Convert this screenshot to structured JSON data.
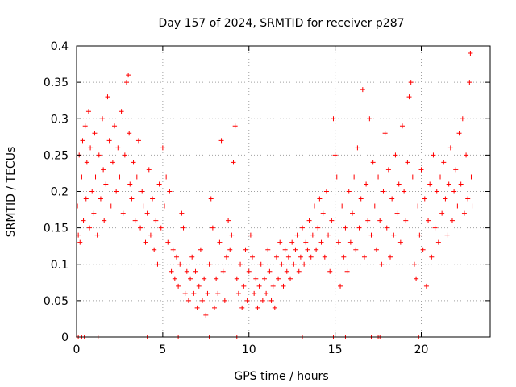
{
  "chart_data": {
    "type": "scatter",
    "title": "Day 157 of 2024, SRMTID for receiver p287",
    "xlabel": "GPS time / hours",
    "ylabel": "SRMTID / TECUs",
    "xlim": [
      0,
      24
    ],
    "ylim": [
      0,
      0.4
    ],
    "xticks": [
      0,
      5,
      10,
      15,
      20
    ],
    "xtick_labels": [
      "0",
      "5",
      "10",
      "15",
      "20"
    ],
    "yticks": [
      0,
      0.05,
      0.1,
      0.15,
      0.2,
      0.25,
      0.3,
      0.35,
      0.4
    ],
    "ytick_labels": [
      "0",
      "0.05",
      "0.1",
      "0.15",
      "0.2",
      "0.25",
      "0.3",
      "0.35",
      "0.4"
    ],
    "grid": true,
    "marker": "+",
    "series": [
      {
        "name": "SRMTID",
        "color": "#ff0000",
        "points": [
          [
            0.05,
            0.18
          ],
          [
            0.1,
            0.14
          ],
          [
            0.15,
            0.25
          ],
          [
            0.2,
            0.13
          ],
          [
            0.3,
            0.22
          ],
          [
            0.35,
            0.27
          ],
          [
            0.4,
            0.16
          ],
          [
            0.5,
            0.29
          ],
          [
            0.55,
            0.19
          ],
          [
            0.6,
            0.24
          ],
          [
            0.7,
            0.31
          ],
          [
            0.75,
            0.15
          ],
          [
            0.8,
            0.26
          ],
          [
            0.9,
            0.2
          ],
          [
            1.0,
            0.17
          ],
          [
            1.05,
            0.28
          ],
          [
            1.1,
            0.22
          ],
          [
            1.2,
            0.14
          ],
          [
            1.3,
            0.25
          ],
          [
            1.4,
            0.19
          ],
          [
            1.5,
            0.3
          ],
          [
            1.55,
            0.23
          ],
          [
            1.6,
            0.16
          ],
          [
            1.7,
            0.21
          ],
          [
            1.8,
            0.33
          ],
          [
            1.9,
            0.27
          ],
          [
            2.0,
            0.18
          ],
          [
            2.1,
            0.24
          ],
          [
            2.2,
            0.29
          ],
          [
            2.3,
            0.2
          ],
          [
            2.4,
            0.26
          ],
          [
            2.5,
            0.22
          ],
          [
            2.6,
            0.31
          ],
          [
            2.7,
            0.17
          ],
          [
            2.8,
            0.25
          ],
          [
            2.9,
            0.35
          ],
          [
            3.0,
            0.36
          ],
          [
            3.05,
            0.28
          ],
          [
            3.1,
            0.21
          ],
          [
            3.2,
            0.19
          ],
          [
            3.3,
            0.24
          ],
          [
            3.4,
            0.16
          ],
          [
            3.5,
            0.22
          ],
          [
            3.6,
            0.27
          ],
          [
            3.7,
            0.15
          ],
          [
            3.8,
            0.2
          ],
          [
            3.9,
            0.18
          ],
          [
            4.0,
            0.13
          ],
          [
            4.1,
            0.17
          ],
          [
            4.2,
            0.23
          ],
          [
            4.3,
            0.14
          ],
          [
            4.4,
            0.19
          ],
          [
            4.5,
            0.12
          ],
          [
            4.6,
            0.16
          ],
          [
            4.7,
            0.1
          ],
          [
            4.8,
            0.21
          ],
          [
            4.9,
            0.15
          ],
          [
            5.0,
            0.26
          ],
          [
            5.1,
            0.18
          ],
          [
            5.2,
            0.22
          ],
          [
            5.3,
            0.13
          ],
          [
            5.4,
            0.2
          ],
          [
            5.5,
            0.09
          ],
          [
            5.6,
            0.12
          ],
          [
            5.7,
            0.08
          ],
          [
            5.8,
            0.11
          ],
          [
            5.9,
            0.07
          ],
          [
            6.0,
            0.1
          ],
          [
            6.1,
            0.17
          ],
          [
            6.2,
            0.15
          ],
          [
            6.3,
            0.06
          ],
          [
            6.4,
            0.09
          ],
          [
            6.5,
            0.05
          ],
          [
            6.6,
            0.08
          ],
          [
            6.7,
            0.11
          ],
          [
            6.8,
            0.06
          ],
          [
            6.9,
            0.09
          ],
          [
            7.0,
            0.04
          ],
          [
            7.1,
            0.07
          ],
          [
            7.2,
            0.12
          ],
          [
            7.3,
            0.05
          ],
          [
            7.4,
            0.08
          ],
          [
            7.5,
            0.03
          ],
          [
            7.6,
            0.06
          ],
          [
            7.7,
            0.1
          ],
          [
            7.8,
            0.19
          ],
          [
            7.9,
            0.15
          ],
          [
            8.0,
            0.04
          ],
          [
            8.1,
            0.08
          ],
          [
            8.2,
            0.06
          ],
          [
            8.3,
            0.13
          ],
          [
            8.4,
            0.27
          ],
          [
            8.5,
            0.09
          ],
          [
            8.6,
            0.05
          ],
          [
            8.7,
            0.11
          ],
          [
            8.8,
            0.16
          ],
          [
            8.9,
            0.12
          ],
          [
            9.0,
            0.14
          ],
          [
            9.1,
            0.24
          ],
          [
            9.2,
            0.29
          ],
          [
            9.3,
            0.08
          ],
          [
            9.4,
            0.06
          ],
          [
            9.5,
            0.1
          ],
          [
            9.6,
            0.04
          ],
          [
            9.7,
            0.07
          ],
          [
            9.8,
            0.12
          ],
          [
            9.9,
            0.05
          ],
          [
            10.0,
            0.09
          ],
          [
            10.1,
            0.14
          ],
          [
            10.2,
            0.11
          ],
          [
            10.3,
            0.06
          ],
          [
            10.4,
            0.08
          ],
          [
            10.5,
            0.04
          ],
          [
            10.6,
            0.07
          ],
          [
            10.7,
            0.1
          ],
          [
            10.8,
            0.05
          ],
          [
            10.9,
            0.08
          ],
          [
            11.0,
            0.06
          ],
          [
            11.1,
            0.12
          ],
          [
            11.2,
            0.09
          ],
          [
            11.3,
            0.05
          ],
          [
            11.4,
            0.07
          ],
          [
            11.5,
            0.04
          ],
          [
            11.6,
            0.11
          ],
          [
            11.7,
            0.08
          ],
          [
            11.8,
            0.13
          ],
          [
            11.9,
            0.1
          ],
          [
            12.0,
            0.07
          ],
          [
            12.1,
            0.12
          ],
          [
            12.2,
            0.09
          ],
          [
            12.3,
            0.11
          ],
          [
            12.4,
            0.08
          ],
          [
            12.5,
            0.13
          ],
          [
            12.6,
            0.1
          ],
          [
            12.7,
            0.12
          ],
          [
            12.8,
            0.14
          ],
          [
            12.9,
            0.09
          ],
          [
            13.0,
            0.11
          ],
          [
            13.1,
            0.15
          ],
          [
            13.2,
            0.1
          ],
          [
            13.3,
            0.13
          ],
          [
            13.4,
            0.12
          ],
          [
            13.5,
            0.16
          ],
          [
            13.6,
            0.11
          ],
          [
            13.7,
            0.14
          ],
          [
            13.8,
            0.18
          ],
          [
            13.9,
            0.12
          ],
          [
            14.0,
            0.15
          ],
          [
            14.1,
            0.19
          ],
          [
            14.2,
            0.13
          ],
          [
            14.3,
            0.17
          ],
          [
            14.4,
            0.11
          ],
          [
            14.5,
            0.2
          ],
          [
            14.6,
            0.14
          ],
          [
            14.7,
            0.09
          ],
          [
            14.8,
            0.16
          ],
          [
            14.9,
            0.3
          ],
          [
            15.0,
            0.25
          ],
          [
            15.1,
            0.22
          ],
          [
            15.2,
            0.13
          ],
          [
            15.3,
            0.07
          ],
          [
            15.4,
            0.18
          ],
          [
            15.5,
            0.11
          ],
          [
            15.6,
            0.15
          ],
          [
            15.7,
            0.09
          ],
          [
            15.8,
            0.2
          ],
          [
            15.9,
            0.13
          ],
          [
            16.0,
            0.17
          ],
          [
            16.1,
            0.22
          ],
          [
            16.2,
            0.12
          ],
          [
            16.3,
            0.26
          ],
          [
            16.4,
            0.15
          ],
          [
            16.5,
            0.19
          ],
          [
            16.6,
            0.34
          ],
          [
            16.7,
            0.11
          ],
          [
            16.8,
            0.21
          ],
          [
            16.9,
            0.16
          ],
          [
            17.0,
            0.3
          ],
          [
            17.1,
            0.14
          ],
          [
            17.2,
            0.24
          ],
          [
            17.3,
            0.18
          ],
          [
            17.4,
            0.12
          ],
          [
            17.5,
            0.22
          ],
          [
            17.6,
            0.16
          ],
          [
            17.7,
            0.1
          ],
          [
            17.8,
            0.2
          ],
          [
            17.9,
            0.28
          ],
          [
            18.0,
            0.15
          ],
          [
            18.1,
            0.23
          ],
          [
            18.2,
            0.11
          ],
          [
            18.3,
            0.19
          ],
          [
            18.4,
            0.14
          ],
          [
            18.5,
            0.25
          ],
          [
            18.6,
            0.17
          ],
          [
            18.7,
            0.21
          ],
          [
            18.8,
            0.13
          ],
          [
            18.9,
            0.29
          ],
          [
            19.0,
            0.2
          ],
          [
            19.1,
            0.16
          ],
          [
            19.2,
            0.24
          ],
          [
            19.3,
            0.33
          ],
          [
            19.4,
            0.35
          ],
          [
            19.5,
            0.22
          ],
          [
            19.6,
            0.1
          ],
          [
            19.7,
            0.08
          ],
          [
            19.8,
            0.18
          ],
          [
            19.9,
            0.14
          ],
          [
            20.0,
            0.23
          ],
          [
            20.1,
            0.12
          ],
          [
            20.2,
            0.19
          ],
          [
            20.3,
            0.07
          ],
          [
            20.4,
            0.16
          ],
          [
            20.5,
            0.21
          ],
          [
            20.6,
            0.11
          ],
          [
            20.7,
            0.25
          ],
          [
            20.8,
            0.15
          ],
          [
            20.9,
            0.2
          ],
          [
            21.0,
            0.13
          ],
          [
            21.1,
            0.22
          ],
          [
            21.2,
            0.17
          ],
          [
            21.3,
            0.24
          ],
          [
            21.4,
            0.19
          ],
          [
            21.5,
            0.14
          ],
          [
            21.6,
            0.21
          ],
          [
            21.7,
            0.26
          ],
          [
            21.8,
            0.16
          ],
          [
            21.9,
            0.2
          ],
          [
            22.0,
            0.23
          ],
          [
            22.1,
            0.18
          ],
          [
            22.2,
            0.28
          ],
          [
            22.3,
            0.21
          ],
          [
            22.4,
            0.3
          ],
          [
            22.5,
            0.17
          ],
          [
            22.6,
            0.25
          ],
          [
            22.7,
            0.19
          ],
          [
            22.8,
            0.35
          ],
          [
            22.85,
            0.39
          ],
          [
            22.9,
            0.22
          ],
          [
            22.95,
            0.18
          ]
        ]
      }
    ],
    "baseline_markers": [
      0.1,
      0.3,
      0.45,
      1.25,
      4.1,
      5.9,
      7.7,
      9.3,
      13.1,
      14.9,
      15.6,
      17.1,
      17.5,
      17.6,
      19.85
    ]
  }
}
